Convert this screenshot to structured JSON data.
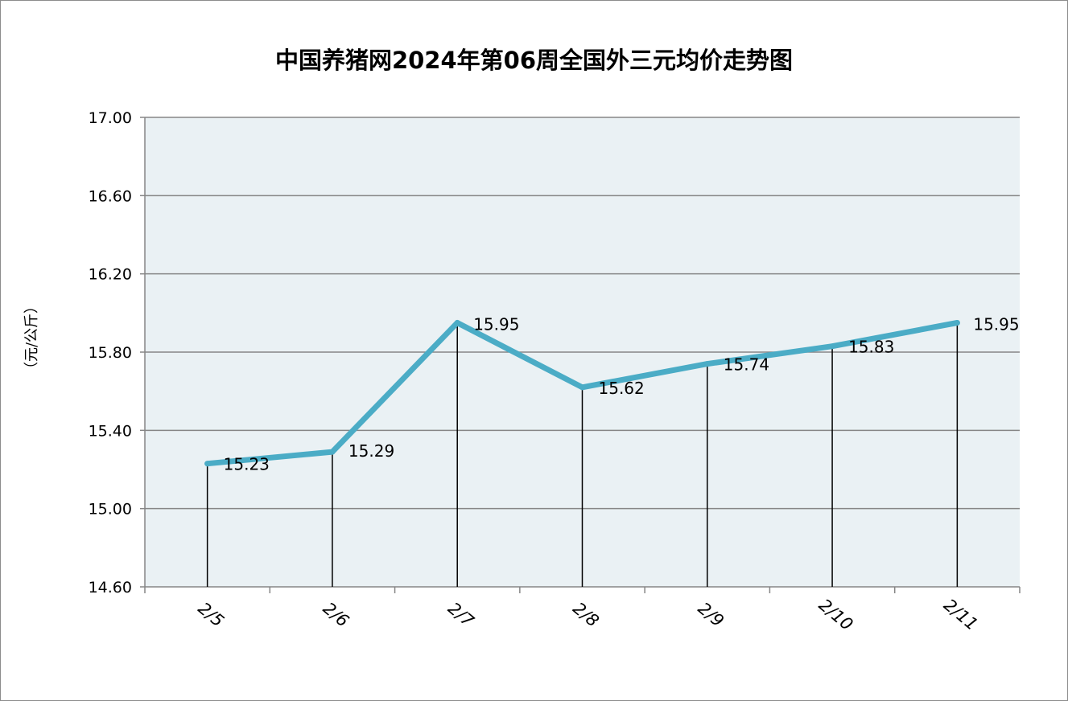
{
  "chart_data": {
    "type": "line",
    "title": "中国养猪网2024年第06周全国外三元均价走势图",
    "ylabel": "（元/公斤）",
    "xlabel": "",
    "categories": [
      "2/5",
      "2/6",
      "2/7",
      "2/8",
      "2/9",
      "2/10",
      "2/11"
    ],
    "series": [
      {
        "values": [
          15.23,
          15.29,
          15.95,
          15.62,
          15.74,
          15.83,
          15.95
        ]
      }
    ],
    "data_labels": [
      "15.23",
      "15.29",
      "15.95",
      "15.62",
      "15.74",
      "15.83",
      "15.95"
    ],
    "ylim": [
      14.6,
      17.0
    ],
    "yticks": [
      "14.60",
      "15.00",
      "15.40",
      "15.80",
      "16.20",
      "16.60",
      "17.00"
    ],
    "grid": true,
    "drop_lines": true,
    "legend": "none",
    "colors": {
      "line": "#4bacc6",
      "plot_background": "#eaf1f4",
      "gridline": "#868686",
      "drop_line": "#000000"
    }
  }
}
